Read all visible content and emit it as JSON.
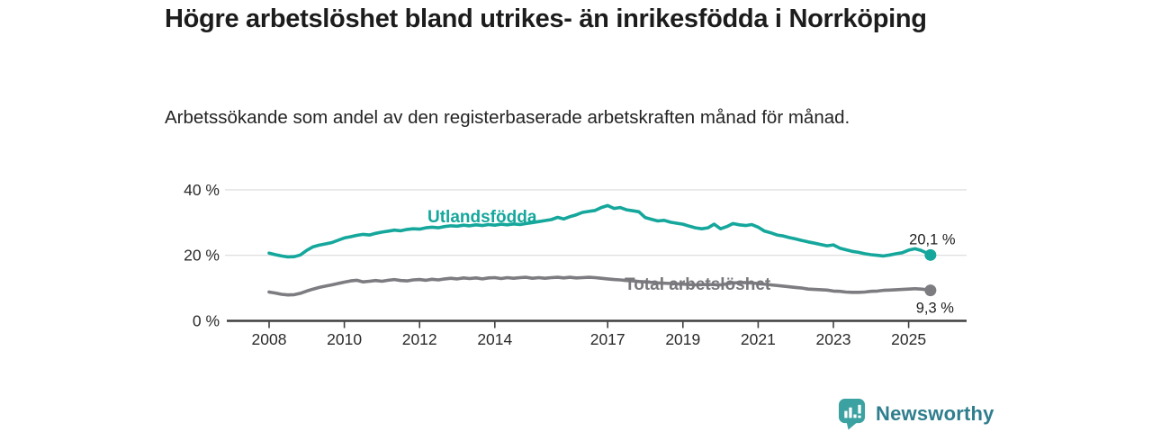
{
  "header": {
    "title": "Högre arbetslöshet bland utrikes- än inrikesfödda i Norrköping",
    "subtitle": "Arbetssökande som andel av den registerbaserade arbetskraften månad för månad."
  },
  "footer": {
    "brand": "Newsworthy",
    "logo_icon": "bar-chart-speech-bubble-icon"
  },
  "colors": {
    "accent_teal": "#15a79c",
    "line_gray": "#7c7c81",
    "grid": "#e0e0e0",
    "axis": "#3f3f3f",
    "tick_text": "#2b2b2b",
    "value_text": "#1f1f1f",
    "brand_icon": "#3ba1a1",
    "brand_text": "#2f7e8e"
  },
  "chart_data": {
    "type": "line",
    "title": "Högre arbetslöshet bland utrikes- än inrikesfödda i Norrköping",
    "subtitle": "Arbetssökande som andel av den registerbaserade arbetskraften månad för månad.",
    "unit": "%",
    "grid": true,
    "legend_position": "inline-labels",
    "x_axis": {
      "range": [
        2008,
        2025.7
      ],
      "ticks": [
        {
          "label": "2008",
          "value": 2008
        },
        {
          "label": "2010",
          "value": 2010
        },
        {
          "label": "2012",
          "value": 2012
        },
        {
          "label": "2014",
          "value": 2014
        },
        {
          "label": "2017",
          "value": 2017
        },
        {
          "label": "2019",
          "value": 2019
        },
        {
          "label": "2021",
          "value": 2021
        },
        {
          "label": "2023",
          "value": 2023
        },
        {
          "label": "2025",
          "value": 2025
        }
      ]
    },
    "y_axis": {
      "range": [
        0,
        44
      ],
      "ticks": [
        {
          "label": "0 %",
          "value": 0
        },
        {
          "label": "20 %",
          "value": 20
        },
        {
          "label": "40 %",
          "value": 40
        }
      ]
    },
    "series": [
      {
        "name": "Utlandsfödda",
        "color": "#15a79c",
        "label_color": "#15a79c",
        "end_label": "20,1 %",
        "end_value": 20.1,
        "points": [
          [
            2008.0,
            20.7
          ],
          [
            2008.17,
            20.2
          ],
          [
            2008.33,
            19.8
          ],
          [
            2008.5,
            19.5
          ],
          [
            2008.67,
            19.6
          ],
          [
            2008.83,
            20.1
          ],
          [
            2009.0,
            21.5
          ],
          [
            2009.17,
            22.6
          ],
          [
            2009.33,
            23.1
          ],
          [
            2009.5,
            23.5
          ],
          [
            2009.67,
            23.9
          ],
          [
            2009.83,
            24.6
          ],
          [
            2010.0,
            25.3
          ],
          [
            2010.17,
            25.7
          ],
          [
            2010.33,
            26.1
          ],
          [
            2010.5,
            26.4
          ],
          [
            2010.67,
            26.2
          ],
          [
            2010.83,
            26.7
          ],
          [
            2011.0,
            27.1
          ],
          [
            2011.17,
            27.4
          ],
          [
            2011.33,
            27.7
          ],
          [
            2011.5,
            27.5
          ],
          [
            2011.67,
            27.9
          ],
          [
            2011.83,
            28.1
          ],
          [
            2012.0,
            28.0
          ],
          [
            2012.17,
            28.4
          ],
          [
            2012.33,
            28.6
          ],
          [
            2012.5,
            28.4
          ],
          [
            2012.67,
            28.8
          ],
          [
            2012.83,
            29.0
          ],
          [
            2013.0,
            28.9
          ],
          [
            2013.17,
            29.2
          ],
          [
            2013.33,
            29.0
          ],
          [
            2013.5,
            29.3
          ],
          [
            2013.67,
            29.1
          ],
          [
            2013.83,
            29.4
          ],
          [
            2014.0,
            29.2
          ],
          [
            2014.17,
            29.5
          ],
          [
            2014.33,
            29.3
          ],
          [
            2014.5,
            29.6
          ],
          [
            2014.67,
            29.4
          ],
          [
            2014.83,
            29.7
          ],
          [
            2015.0,
            30.0
          ],
          [
            2015.17,
            30.3
          ],
          [
            2015.33,
            30.6
          ],
          [
            2015.5,
            30.9
          ],
          [
            2015.67,
            31.6
          ],
          [
            2015.83,
            31.1
          ],
          [
            2016.0,
            31.8
          ],
          [
            2016.17,
            32.4
          ],
          [
            2016.33,
            33.1
          ],
          [
            2016.5,
            33.4
          ],
          [
            2016.67,
            33.7
          ],
          [
            2016.83,
            34.6
          ],
          [
            2017.0,
            35.2
          ],
          [
            2017.17,
            34.3
          ],
          [
            2017.33,
            34.6
          ],
          [
            2017.5,
            33.9
          ],
          [
            2017.67,
            33.6
          ],
          [
            2017.83,
            33.3
          ],
          [
            2018.0,
            31.5
          ],
          [
            2018.17,
            31.0
          ],
          [
            2018.33,
            30.5
          ],
          [
            2018.5,
            30.7
          ],
          [
            2018.67,
            30.1
          ],
          [
            2018.83,
            29.8
          ],
          [
            2019.0,
            29.5
          ],
          [
            2019.17,
            28.9
          ],
          [
            2019.33,
            28.4
          ],
          [
            2019.5,
            28.1
          ],
          [
            2019.67,
            28.4
          ],
          [
            2019.83,
            29.5
          ],
          [
            2020.0,
            28.1
          ],
          [
            2020.17,
            28.8
          ],
          [
            2020.33,
            29.7
          ],
          [
            2020.5,
            29.3
          ],
          [
            2020.67,
            29.1
          ],
          [
            2020.83,
            29.4
          ],
          [
            2021.0,
            28.6
          ],
          [
            2021.17,
            27.4
          ],
          [
            2021.33,
            26.9
          ],
          [
            2021.5,
            26.2
          ],
          [
            2021.67,
            25.9
          ],
          [
            2021.83,
            25.4
          ],
          [
            2022.0,
            25.0
          ],
          [
            2022.17,
            24.5
          ],
          [
            2022.33,
            24.1
          ],
          [
            2022.5,
            23.7
          ],
          [
            2022.67,
            23.3
          ],
          [
            2022.83,
            22.9
          ],
          [
            2023.0,
            23.2
          ],
          [
            2023.17,
            22.2
          ],
          [
            2023.33,
            21.7
          ],
          [
            2023.5,
            21.2
          ],
          [
            2023.67,
            20.9
          ],
          [
            2023.83,
            20.5
          ],
          [
            2024.0,
            20.2
          ],
          [
            2024.17,
            20.0
          ],
          [
            2024.33,
            19.8
          ],
          [
            2024.5,
            20.1
          ],
          [
            2024.67,
            20.5
          ],
          [
            2024.83,
            20.8
          ],
          [
            2025.0,
            21.6
          ],
          [
            2025.17,
            22.0
          ],
          [
            2025.33,
            21.5
          ],
          [
            2025.5,
            20.6
          ],
          [
            2025.58,
            20.1
          ]
        ]
      },
      {
        "name": "Total arbetslöshet",
        "color": "#7c7c81",
        "label_color": "#77777c",
        "end_label": "9,3 %",
        "end_value": 9.3,
        "points": [
          [
            2008.0,
            8.8
          ],
          [
            2008.17,
            8.5
          ],
          [
            2008.33,
            8.1
          ],
          [
            2008.5,
            7.9
          ],
          [
            2008.67,
            8.0
          ],
          [
            2008.83,
            8.4
          ],
          [
            2009.0,
            9.1
          ],
          [
            2009.17,
            9.7
          ],
          [
            2009.33,
            10.2
          ],
          [
            2009.5,
            10.6
          ],
          [
            2009.67,
            11.0
          ],
          [
            2009.83,
            11.4
          ],
          [
            2010.0,
            11.8
          ],
          [
            2010.17,
            12.2
          ],
          [
            2010.33,
            12.4
          ],
          [
            2010.5,
            11.9
          ],
          [
            2010.67,
            12.1
          ],
          [
            2010.83,
            12.3
          ],
          [
            2011.0,
            12.1
          ],
          [
            2011.17,
            12.4
          ],
          [
            2011.33,
            12.6
          ],
          [
            2011.5,
            12.3
          ],
          [
            2011.67,
            12.2
          ],
          [
            2011.83,
            12.5
          ],
          [
            2012.0,
            12.6
          ],
          [
            2012.17,
            12.4
          ],
          [
            2012.33,
            12.7
          ],
          [
            2012.5,
            12.5
          ],
          [
            2012.67,
            12.8
          ],
          [
            2012.83,
            13.0
          ],
          [
            2013.0,
            12.8
          ],
          [
            2013.17,
            13.1
          ],
          [
            2013.33,
            12.9
          ],
          [
            2013.5,
            13.1
          ],
          [
            2013.67,
            12.8
          ],
          [
            2013.83,
            13.1
          ],
          [
            2014.0,
            13.2
          ],
          [
            2014.17,
            12.9
          ],
          [
            2014.33,
            13.2
          ],
          [
            2014.5,
            13.0
          ],
          [
            2014.67,
            13.2
          ],
          [
            2014.83,
            13.3
          ],
          [
            2015.0,
            13.0
          ],
          [
            2015.17,
            13.2
          ],
          [
            2015.33,
            13.0
          ],
          [
            2015.5,
            13.2
          ],
          [
            2015.67,
            13.3
          ],
          [
            2015.83,
            13.1
          ],
          [
            2016.0,
            13.3
          ],
          [
            2016.17,
            13.1
          ],
          [
            2016.33,
            13.2
          ],
          [
            2016.5,
            13.3
          ],
          [
            2016.67,
            13.2
          ],
          [
            2016.83,
            13.0
          ],
          [
            2017.0,
            12.8
          ],
          [
            2017.17,
            12.6
          ],
          [
            2017.33,
            12.5
          ],
          [
            2017.5,
            12.3
          ],
          [
            2017.67,
            12.2
          ],
          [
            2017.83,
            12.0
          ],
          [
            2018.0,
            11.9
          ],
          [
            2018.33,
            11.6
          ],
          [
            2018.67,
            11.4
          ],
          [
            2019.0,
            11.2
          ],
          [
            2019.33,
            11.0
          ],
          [
            2019.67,
            11.1
          ],
          [
            2020.0,
            11.0
          ],
          [
            2020.33,
            11.6
          ],
          [
            2020.67,
            11.7
          ],
          [
            2021.0,
            11.4
          ],
          [
            2021.33,
            11.0
          ],
          [
            2021.67,
            10.6
          ],
          [
            2022.0,
            10.2
          ],
          [
            2022.17,
            10.0
          ],
          [
            2022.33,
            9.7
          ],
          [
            2022.5,
            9.6
          ],
          [
            2022.67,
            9.5
          ],
          [
            2022.83,
            9.4
          ],
          [
            2023.0,
            9.1
          ],
          [
            2023.17,
            9.0
          ],
          [
            2023.33,
            8.8
          ],
          [
            2023.5,
            8.7
          ],
          [
            2023.67,
            8.7
          ],
          [
            2023.83,
            8.8
          ],
          [
            2024.0,
            9.0
          ],
          [
            2024.17,
            9.1
          ],
          [
            2024.33,
            9.3
          ],
          [
            2024.5,
            9.4
          ],
          [
            2024.67,
            9.5
          ],
          [
            2024.83,
            9.6
          ],
          [
            2025.0,
            9.7
          ],
          [
            2025.17,
            9.8
          ],
          [
            2025.33,
            9.7
          ],
          [
            2025.5,
            9.5
          ],
          [
            2025.58,
            9.3
          ]
        ]
      }
    ]
  }
}
